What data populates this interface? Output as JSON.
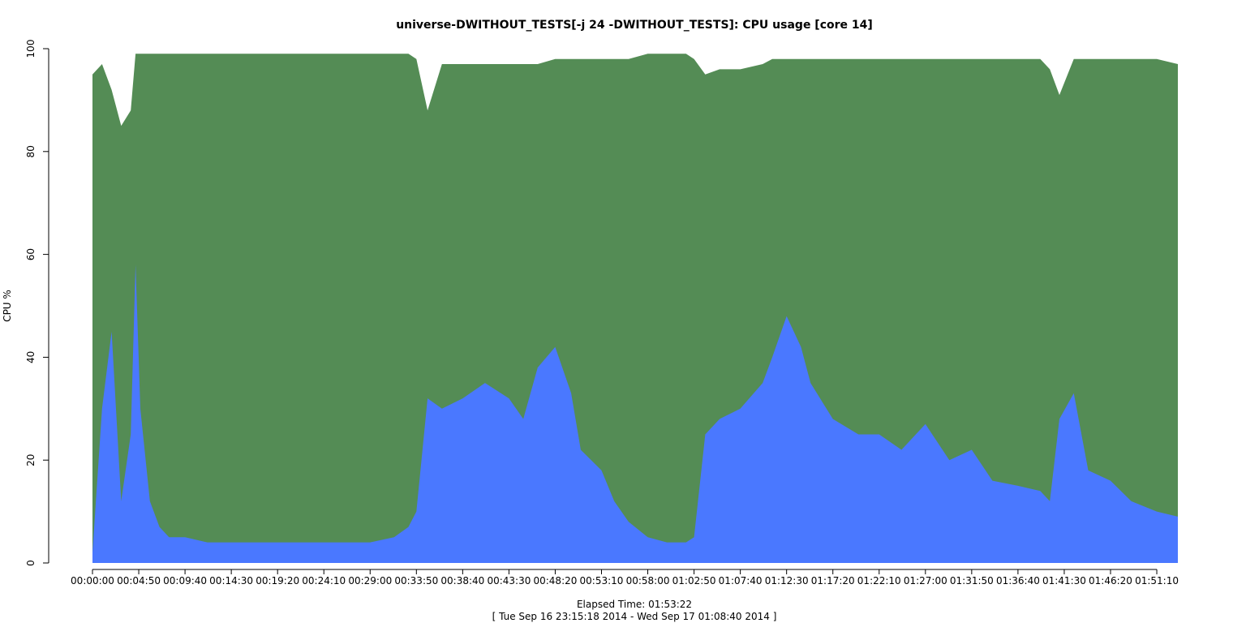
{
  "chart_data": {
    "type": "area",
    "title": "universe-DWITHOUT_TESTS[-j 24  -DWITHOUT_TESTS]: CPU usage [core 14]",
    "xlabel": "Elapsed Time: 01:53:22",
    "ylabel": "CPU %",
    "time_range_label": "[ Tue Sep 16 23:15:18 2014 - Wed Sep 17 01:08:40 2014 ]",
    "ylim": [
      0,
      100
    ],
    "xlim_seconds": [
      0,
      6802
    ],
    "y_ticks": [
      0,
      20,
      40,
      60,
      80,
      100
    ],
    "x_ticks": [
      "00:00:00",
      "00:04:50",
      "00:09:40",
      "00:14:30",
      "00:19:20",
      "00:24:10",
      "00:29:00",
      "00:33:50",
      "00:38:40",
      "00:43:30",
      "00:48:20",
      "00:53:10",
      "00:58:00",
      "01:02:50",
      "01:07:40",
      "01:12:30",
      "01:17:20",
      "01:22:10",
      "01:27:00",
      "01:31:50",
      "01:36:40",
      "01:41:30",
      "01:46:20",
      "01:51:10"
    ],
    "grid": false,
    "legend": "none",
    "colors": {
      "series_lower": "#4a78ff",
      "series_upper": "#548c55",
      "spikes": "#00d0ff",
      "background": "#ffffff"
    },
    "x": [
      "00:00:00",
      "00:01:00",
      "00:02:00",
      "00:03:00",
      "00:04:00",
      "00:04:30",
      "00:05:00",
      "00:06:00",
      "00:07:00",
      "00:08:00",
      "00:09:40",
      "00:12:00",
      "00:14:30",
      "00:17:00",
      "00:19:20",
      "00:22:00",
      "00:24:10",
      "00:27:00",
      "00:29:00",
      "00:31:30",
      "00:33:00",
      "00:33:50",
      "00:35:00",
      "00:36:30",
      "00:38:40",
      "00:41:00",
      "00:43:30",
      "00:45:00",
      "00:46:30",
      "00:48:20",
      "00:50:00",
      "00:51:00",
      "00:53:10",
      "00:54:30",
      "00:56:00",
      "00:58:00",
      "01:00:00",
      "01:02:00",
      "01:02:50",
      "01:04:00",
      "01:05:30",
      "01:07:40",
      "01:10:00",
      "01:11:00",
      "01:12:30",
      "01:14:00",
      "01:15:00",
      "01:17:20",
      "01:20:00",
      "01:22:10",
      "01:24:30",
      "01:27:00",
      "01:29:30",
      "01:31:50",
      "01:34:00",
      "01:36:40",
      "01:39:00",
      "01:40:00",
      "01:41:00",
      "01:42:30",
      "01:44:00",
      "01:46:20",
      "01:48:30",
      "01:51:10",
      "01:53:22"
    ],
    "series": [
      {
        "values": [
          2,
          30,
          45,
          12,
          25,
          58,
          30,
          12,
          7,
          5,
          5,
          4,
          4,
          4,
          4,
          4,
          4,
          4,
          4,
          5,
          7,
          10,
          32,
          30,
          32,
          35,
          32,
          28,
          38,
          42,
          33,
          22,
          18,
          12,
          8,
          5,
          4,
          4,
          5,
          25,
          28,
          30,
          35,
          40,
          48,
          42,
          35,
          28,
          25,
          25,
          22,
          27,
          20,
          22,
          16,
          15,
          14,
          12,
          28,
          33,
          18,
          16,
          12,
          10,
          9
        ]
      },
      {
        "values": [
          95,
          97,
          92,
          85,
          88,
          99,
          99,
          99,
          99,
          99,
          99,
          99,
          99,
          99,
          99,
          99,
          99,
          99,
          99,
          99,
          99,
          98,
          88,
          97,
          97,
          97,
          97,
          97,
          97,
          98,
          98,
          98,
          98,
          98,
          98,
          99,
          99,
          99,
          98,
          95,
          96,
          96,
          97,
          98,
          98,
          98,
          98,
          98,
          98,
          98,
          98,
          98,
          98,
          98,
          98,
          98,
          98,
          96,
          91,
          98,
          98,
          98,
          98,
          98,
          97
        ]
      }
    ]
  }
}
